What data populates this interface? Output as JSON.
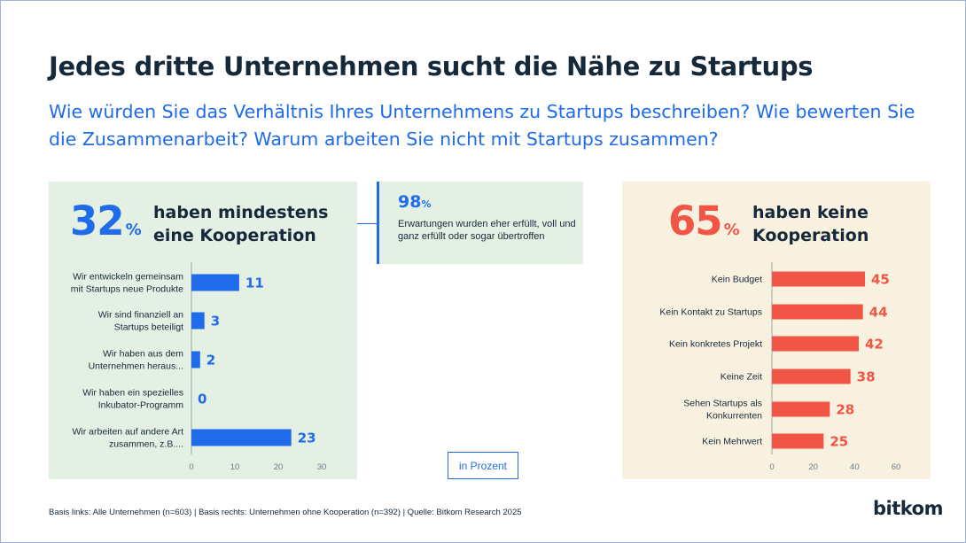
{
  "title": "Jedes dritte Unternehmen sucht die Nähe zu Startups",
  "subtitle": "Wie würden Sie das Verhältnis Ihres Unternehmens zu Startups beschreiben? Wie bewerten Sie die Zusammenarbeit? Warum arbeiten Sie nicht mit Startups zusammen?",
  "left": {
    "big_value": "32",
    "percent_sign": "%",
    "label": "haben mindestens eine Kooperation"
  },
  "middle": {
    "big_value": "98",
    "percent_sign": "%",
    "text": "Erwartungen wurden eher erfüllt, voll und ganz erfüllt oder sogar übertroffen"
  },
  "right": {
    "big_value": "65",
    "percent_sign": "%",
    "label": "haben keine Kooperation"
  },
  "unit": "in Prozent",
  "footer": "Basis links: Alle Unternehmen (n=603) | Basis rechts: Unternehmen ohne Kooperation (n=392) | Quelle: Bitkom Research 2025",
  "logo": "bitkom",
  "colors": {
    "blue": "#1f6bea",
    "red": "#f05545",
    "dark": "#15293a"
  },
  "chart_data": [
    {
      "type": "bar",
      "orientation": "horizontal",
      "categories": [
        [
          "Wir entwickeln gemeinsam",
          "mit Startups neue Produkte"
        ],
        [
          "Wir sind finanziell an",
          "Startups beteiligt"
        ],
        [
          "Wir haben aus dem",
          "Unternehmen heraus..."
        ],
        [
          "Wir haben ein spezielles",
          "Inkubator-Programm"
        ],
        [
          "Wir arbeiten auf andere Art",
          "zusammen, z.B...."
        ]
      ],
      "values": [
        11,
        3,
        2,
        0,
        23
      ],
      "xlim": [
        0,
        30
      ],
      "ticks": [
        0,
        10,
        20,
        30
      ],
      "color": "#1f6bea",
      "grid": false
    },
    {
      "type": "bar",
      "orientation": "horizontal",
      "categories": [
        [
          "Kein Budget"
        ],
        [
          "Kein Kontakt zu Startups"
        ],
        [
          "Kein konkretes Projekt"
        ],
        [
          "Keine Zeit"
        ],
        [
          "Sehen Startups als",
          "Konkurrenten"
        ],
        [
          "Kein Mehrwert"
        ]
      ],
      "values": [
        45,
        44,
        42,
        38,
        28,
        25
      ],
      "xlim": [
        0,
        60
      ],
      "ticks": [
        0,
        20,
        40,
        60
      ],
      "color": "#f05545",
      "grid": false
    }
  ]
}
